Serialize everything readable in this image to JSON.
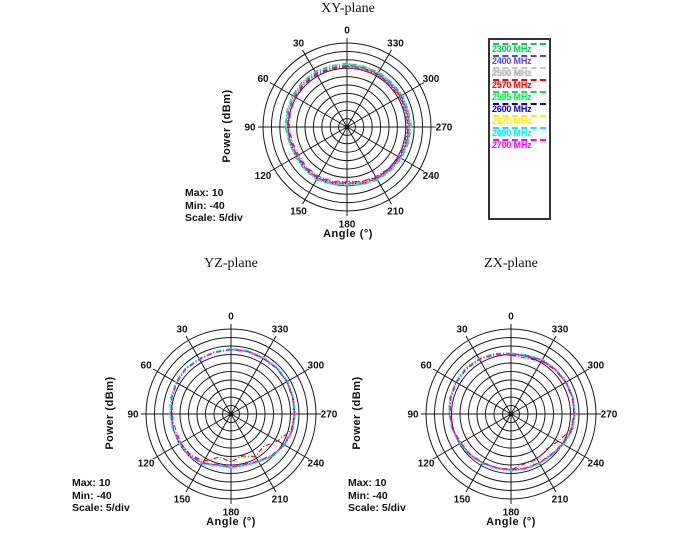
{
  "legend": {
    "items": [
      {
        "label": "2300 MHz",
        "color": "#00cc55"
      },
      {
        "label": "2400 MHz",
        "color": "#5544ff"
      },
      {
        "label": "2500 MHz",
        "color": "#c8c8c8"
      },
      {
        "label": "2570 MHz",
        "color": "#ff0000"
      },
      {
        "label": "2595 MHz",
        "color": "#00ee44"
      },
      {
        "label": "2600 MHz",
        "color": "#1100cc"
      },
      {
        "label": "2620 MHz",
        "color": "#ffee00"
      },
      {
        "label": "2690 MHz",
        "color": "#00eeff"
      },
      {
        "label": "2700 MHz",
        "color": "#ff00ff"
      }
    ]
  },
  "plots": [
    {
      "title": "XY-plane",
      "ylabel": "Power  (dBm)",
      "xlabel": "Angle  (°)",
      "stats": {
        "max": "Max: 10",
        "min": "Min: -40",
        "scale": "Scale: 5/div"
      }
    },
    {
      "title": "YZ-plane",
      "ylabel": "Power  (dBm)",
      "xlabel": "Angle  (°)",
      "stats": {
        "max": "Max: 10",
        "min": "Min: -40",
        "scale": "Scale: 5/div"
      }
    },
    {
      "title": "ZX-plane",
      "ylabel": "Power  (dBm)",
      "xlabel": "Angle  (°)",
      "stats": {
        "max": "Max: 10",
        "min": "Min: -40",
        "scale": "Scale: 5/div"
      }
    }
  ],
  "chart_data": [
    {
      "type": "line",
      "subtype": "polar",
      "title": "XY-plane",
      "r_axis": {
        "max": 10,
        "min": -40,
        "step": 5,
        "divisions": 10,
        "units": "dBm"
      },
      "angle_tick_labels": [
        "0",
        "30",
        "60",
        "90",
        "120",
        "150",
        "180",
        "210",
        "240",
        "270",
        "300",
        "330"
      ],
      "angle_direction": "counterclockwise-from-top",
      "angles_deg": [
        0,
        15,
        30,
        45,
        60,
        75,
        90,
        105,
        120,
        135,
        150,
        165,
        180,
        195,
        210,
        225,
        240,
        255,
        270,
        285,
        300,
        315,
        330,
        345
      ],
      "series": [
        {
          "name": "2300 MHz",
          "color": "#00cc55",
          "values": [
            -2.0,
            -2.3,
            -1.8,
            -2.2,
            -2.4,
            -2.9,
            -3.2,
            -4.2,
            -4.4,
            -4.1,
            -3.6,
            -4.7,
            -5.2,
            -4.5,
            -3.5,
            -3.2,
            -2.5,
            -2.2,
            -1.6,
            -2.1,
            -1.8,
            -2.4,
            -2.2,
            -2.5
          ]
        },
        {
          "name": "2400 MHz",
          "color": "#5544ff",
          "values": [
            -4.5,
            -4.1,
            -4.4,
            -3.9,
            -4.7,
            -5.2,
            -5.6,
            -6.3,
            -6.7,
            -6.1,
            -6.2,
            -6.6,
            -7.7,
            -6.3,
            -5.9,
            -5.0,
            -4.9,
            -4.4,
            -4.0,
            -4.2,
            -3.9,
            -4.5,
            -4.3,
            -4.7
          ]
        },
        {
          "name": "2500 MHz",
          "color": "#c8c8c8",
          "values": [
            -3.6,
            -3.2,
            -3.4,
            -3.0,
            -3.8,
            -4.1,
            -4.7,
            -5.0,
            -5.8,
            -5.3,
            -5.2,
            -5.6,
            -6.8,
            -5.7,
            -4.9,
            -4.3,
            -3.7,
            -3.5,
            -3.0,
            -3.2,
            -3.1,
            -3.6,
            -3.4,
            -3.7
          ]
        },
        {
          "name": "2570 MHz",
          "color": "#ff0000",
          "values": [
            -3.8,
            -4.0,
            -3.6,
            -3.7,
            -4.3,
            -4.7,
            -5.0,
            -5.7,
            -6.0,
            -5.6,
            -5.4,
            -6.1,
            -7.0,
            -6.4,
            -5.2,
            -4.6,
            -4.1,
            -3.8,
            -3.5,
            -3.6,
            -3.4,
            -3.9,
            -3.8,
            -4.1
          ]
        },
        {
          "name": "2595 MHz",
          "color": "#00ee44",
          "values": [
            -2.4,
            -2.7,
            -2.2,
            -2.5,
            -2.8,
            -3.2,
            -3.7,
            -4.4,
            -4.8,
            -4.5,
            -4.0,
            -5.0,
            -5.6,
            -4.8,
            -3.9,
            -3.4,
            -2.9,
            -2.5,
            -2.2,
            -2.3,
            -2.2,
            -2.7,
            -2.6,
            -2.8
          ]
        },
        {
          "name": "2600 MHz",
          "color": "#1100cc",
          "values": [
            -3.0,
            -3.2,
            -2.7,
            -2.9,
            -3.3,
            -3.7,
            -4.3,
            -4.9,
            -5.3,
            -4.9,
            -4.5,
            -5.5,
            -6.3,
            -5.3,
            -4.4,
            -3.9,
            -3.3,
            -3.1,
            -2.7,
            -2.7,
            -2.7,
            -3.1,
            -3.1,
            -3.2
          ]
        },
        {
          "name": "2620 MHz",
          "color": "#ffee00",
          "values": [
            -2.8,
            -3.0,
            -2.5,
            -2.7,
            -3.1,
            -3.4,
            -4.0,
            -4.6,
            -5.0,
            -4.7,
            -4.3,
            -5.2,
            -6.0,
            -5.1,
            -4.2,
            -3.6,
            -3.1,
            -2.8,
            -2.5,
            -2.5,
            -2.5,
            -2.9,
            -2.9,
            -3.0
          ]
        },
        {
          "name": "2690 MHz",
          "color": "#00eeff",
          "values": [
            -2.6,
            -2.8,
            -2.3,
            -2.6,
            -2.9,
            -3.3,
            -3.8,
            -4.5,
            -4.9,
            -4.6,
            -4.1,
            -5.1,
            -5.8,
            -4.9,
            -4.0,
            -3.5,
            -3.0,
            -2.6,
            -2.3,
            -2.4,
            -2.3,
            -2.8,
            -2.7,
            -2.9
          ]
        },
        {
          "name": "2700 MHz",
          "color": "#ff00ff",
          "values": [
            -3.3,
            -3.5,
            -3.0,
            -3.2,
            -3.6,
            -3.9,
            -4.5,
            -5.2,
            -5.6,
            -5.1,
            -4.8,
            -5.7,
            -6.5,
            -5.5,
            -4.6,
            -4.1,
            -3.6,
            -3.3,
            -2.9,
            -3.0,
            -2.9,
            -3.4,
            -3.3,
            -3.5
          ]
        }
      ]
    },
    {
      "type": "line",
      "subtype": "polar",
      "title": "YZ-plane",
      "r_axis": {
        "max": 10,
        "min": -40,
        "step": 5,
        "divisions": 10,
        "units": "dBm"
      },
      "angle_tick_labels": [
        "0",
        "30",
        "60",
        "90",
        "120",
        "150",
        "180",
        "210",
        "240",
        "270",
        "300",
        "330"
      ],
      "angle_direction": "counterclockwise-from-top",
      "angles_deg": [
        0,
        15,
        30,
        45,
        60,
        75,
        90,
        105,
        120,
        135,
        150,
        165,
        180,
        195,
        210,
        225,
        240,
        255,
        270,
        285,
        300,
        315,
        330,
        345
      ],
      "series": [
        {
          "name": "2300 MHz",
          "color": "#00cc55",
          "values": [
            -1.5,
            -2.0,
            -2.3,
            -1.9,
            -2.5,
            -3.3,
            -4.0,
            -4.4,
            -5.0,
            -4.8,
            -6.0,
            -8.4,
            -8.2,
            -8.5,
            -7.2,
            -5.0,
            -3.3,
            -2.3,
            -2.1,
            -1.9,
            -1.5,
            -1.4,
            -1.6,
            -1.4
          ]
        },
        {
          "name": "2400 MHz",
          "color": "#5544ff",
          "values": [
            -2.2,
            -2.6,
            -3.0,
            -2.6,
            -3.2,
            -4.0,
            -4.9,
            -6.2,
            -5.9,
            -5.7,
            -6.9,
            -9.3,
            -9.0,
            -9.4,
            -8.1,
            -5.9,
            -4.1,
            -3.0,
            -2.8,
            -2.6,
            -2.2,
            -2.1,
            -2.3,
            -2.1
          ]
        },
        {
          "name": "2500 MHz",
          "color": "#c8c8c8",
          "values": [
            -1.9,
            -2.3,
            -2.7,
            -2.3,
            -2.9,
            -3.7,
            -4.5,
            -4.9,
            -5.5,
            -5.3,
            -6.5,
            -8.9,
            -8.7,
            -9.0,
            -7.7,
            -5.5,
            -3.7,
            -2.7,
            -2.5,
            -2.3,
            -1.9,
            -1.8,
            -2.0,
            -1.8
          ]
        },
        {
          "name": "2570 MHz",
          "color": "#ff0000",
          "values": [
            -2.0,
            -2.4,
            -2.8,
            -2.4,
            -3.0,
            -3.8,
            -4.6,
            -5.1,
            -5.8,
            -6.2,
            -8.0,
            -13.8,
            -11.8,
            -14.4,
            -11.2,
            -13.0,
            -8.2,
            -3.4,
            -2.6,
            -2.4,
            -2.0,
            -1.9,
            -2.1,
            -1.9
          ]
        },
        {
          "name": "2595 MHz",
          "color": "#00ee44",
          "values": [
            -1.6,
            -2.1,
            -2.4,
            -2.0,
            -2.6,
            -3.4,
            -4.1,
            -4.5,
            -5.1,
            -4.9,
            -6.1,
            -8.6,
            -8.3,
            -8.7,
            -7.4,
            -5.2,
            -3.4,
            -2.4,
            -2.2,
            -2.0,
            -1.6,
            -1.5,
            -1.7,
            -1.5
          ]
        },
        {
          "name": "2600 MHz",
          "color": "#1100cc",
          "values": [
            -1.8,
            -2.2,
            -2.6,
            -2.2,
            -2.8,
            -3.6,
            -4.3,
            -4.7,
            -5.3,
            -5.1,
            -6.3,
            -8.8,
            -8.5,
            -8.9,
            -7.6,
            -5.4,
            -3.6,
            -2.6,
            -2.4,
            -2.2,
            -1.8,
            -1.7,
            -1.9,
            -1.7
          ]
        },
        {
          "name": "2620 MHz",
          "color": "#ffee00",
          "values": [
            -1.7,
            -2.1,
            -2.5,
            -2.1,
            -2.7,
            -3.5,
            -4.2,
            -4.6,
            -5.2,
            -5.0,
            -6.2,
            -8.7,
            -8.4,
            -8.8,
            -7.5,
            -5.3,
            -3.5,
            -2.5,
            -2.3,
            -2.1,
            -1.7,
            -1.6,
            -1.8,
            -1.6
          ]
        },
        {
          "name": "2690 MHz",
          "color": "#00eeff",
          "values": [
            -1.6,
            -2.0,
            -2.4,
            -2.0,
            -2.6,
            -3.4,
            -4.1,
            -4.6,
            -5.1,
            -5.0,
            -6.1,
            -8.5,
            -8.3,
            -8.6,
            -7.3,
            -5.1,
            -3.4,
            -2.4,
            -2.2,
            -2.0,
            -1.6,
            -1.5,
            -1.7,
            -1.5
          ]
        },
        {
          "name": "2700 MHz",
          "color": "#ff00ff",
          "values": [
            -2.0,
            -2.4,
            -2.8,
            -2.4,
            -3.0,
            -3.8,
            -5.5,
            -5.0,
            -5.6,
            -5.4,
            -6.6,
            -9.0,
            -8.8,
            -9.1,
            -7.8,
            -5.6,
            -3.8,
            -2.8,
            -2.6,
            -2.4,
            -2.0,
            -1.9,
            -2.1,
            -1.9
          ]
        }
      ]
    },
    {
      "type": "line",
      "subtype": "polar",
      "title": "ZX-plane",
      "r_axis": {
        "max": 10,
        "min": -40,
        "step": 5,
        "divisions": 10,
        "units": "dBm"
      },
      "angle_tick_labels": [
        "0",
        "30",
        "60",
        "90",
        "120",
        "150",
        "180",
        "210",
        "240",
        "270",
        "300",
        "330"
      ],
      "angle_direction": "counterclockwise-from-top",
      "angles_deg": [
        0,
        15,
        30,
        45,
        60,
        75,
        90,
        105,
        120,
        135,
        150,
        165,
        180,
        195,
        210,
        225,
        240,
        255,
        270,
        285,
        300,
        315,
        330,
        345
      ],
      "series": [
        {
          "name": "2300 MHz",
          "color": "#00cc55",
          "values": [
            -4.2,
            -3.1,
            -2.2,
            -2.0,
            -2.3,
            -2.6,
            -3.4,
            -4.0,
            -5.2,
            -5.6,
            -6.2,
            -6.6,
            -6.6,
            -6.4,
            -6.2,
            -5.8,
            -4.2,
            -2.6,
            -2.2,
            -2.0,
            -2.2,
            -2.6,
            -3.0,
            -4.0
          ]
        },
        {
          "name": "2400 MHz",
          "color": "#5544ff",
          "values": [
            -5.0,
            -3.8,
            -3.0,
            -2.8,
            -3.0,
            -3.4,
            -4.2,
            -4.8,
            -6.0,
            -6.4,
            -7.0,
            -7.4,
            -7.4,
            -7.2,
            -7.0,
            -6.6,
            -5.0,
            -3.4,
            -3.0,
            -2.8,
            -3.0,
            -3.4,
            -3.8,
            -4.8
          ]
        },
        {
          "name": "2500 MHz",
          "color": "#c8c8c8",
          "values": [
            -4.6,
            -3.4,
            -2.6,
            -2.4,
            -2.6,
            -3.0,
            -3.8,
            -4.4,
            -5.6,
            -6.0,
            -6.6,
            -7.0,
            -7.0,
            -6.8,
            -6.6,
            -6.2,
            -4.6,
            -3.0,
            -2.6,
            -2.4,
            -2.6,
            -3.0,
            -3.4,
            -4.4
          ]
        },
        {
          "name": "2570 MHz",
          "color": "#ff0000",
          "values": [
            -5.4,
            -3.6,
            -2.8,
            -2.5,
            -2.8,
            -3.2,
            -4.0,
            -4.6,
            -5.8,
            -6.2,
            -6.8,
            -7.2,
            -7.3,
            -9.6,
            -9.2,
            -10.6,
            -8.0,
            -3.6,
            -2.9,
            -2.6,
            -2.8,
            -3.2,
            -4.2,
            -6.0
          ]
        },
        {
          "name": "2595 MHz",
          "color": "#00ee44",
          "values": [
            -4.3,
            -3.2,
            -2.3,
            -2.1,
            -2.4,
            -2.7,
            -3.5,
            -4.1,
            -5.3,
            -5.7,
            -6.3,
            -6.7,
            -6.7,
            -6.5,
            -6.3,
            -5.9,
            -4.3,
            -2.7,
            -2.3,
            -2.1,
            -2.3,
            -2.7,
            -3.1,
            -4.1
          ]
        },
        {
          "name": "2600 MHz",
          "color": "#1100cc",
          "values": [
            -4.5,
            -3.4,
            -2.5,
            -2.3,
            -2.5,
            -2.9,
            -3.7,
            -4.3,
            -5.5,
            -5.9,
            -6.5,
            -6.9,
            -6.9,
            -6.7,
            -6.5,
            -6.1,
            -4.5,
            -2.9,
            -2.5,
            -2.3,
            -2.5,
            -2.9,
            -3.3,
            -4.3
          ]
        },
        {
          "name": "2620 MHz",
          "color": "#ffee00",
          "values": [
            -4.4,
            -3.3,
            -2.4,
            -2.2,
            -2.4,
            -2.8,
            -3.6,
            -4.2,
            -5.4,
            -5.8,
            -6.4,
            -6.8,
            -6.8,
            -6.6,
            -6.4,
            -6.0,
            -4.4,
            -2.8,
            -2.4,
            -2.2,
            -2.4,
            -2.8,
            -3.2,
            -4.2
          ]
        },
        {
          "name": "2690 MHz",
          "color": "#00eeff",
          "values": [
            -4.3,
            -3.2,
            -2.4,
            -2.1,
            -2.3,
            -2.7,
            -3.6,
            -4.1,
            -5.3,
            -5.7,
            -6.3,
            -6.7,
            -6.7,
            -6.5,
            -6.3,
            -5.9,
            -4.3,
            -2.7,
            -2.3,
            -2.2,
            -2.3,
            -2.7,
            -3.1,
            -4.1
          ]
        },
        {
          "name": "2700 MHz",
          "color": "#ff00ff",
          "values": [
            -4.8,
            -3.6,
            -2.7,
            -2.5,
            -2.7,
            -3.1,
            -3.9,
            -4.5,
            -5.7,
            -6.1,
            -6.7,
            -7.1,
            -7.1,
            -6.9,
            -6.7,
            -6.3,
            -4.7,
            -3.1,
            -2.7,
            -2.5,
            -2.7,
            -3.1,
            -3.5,
            -4.5
          ]
        }
      ]
    }
  ]
}
